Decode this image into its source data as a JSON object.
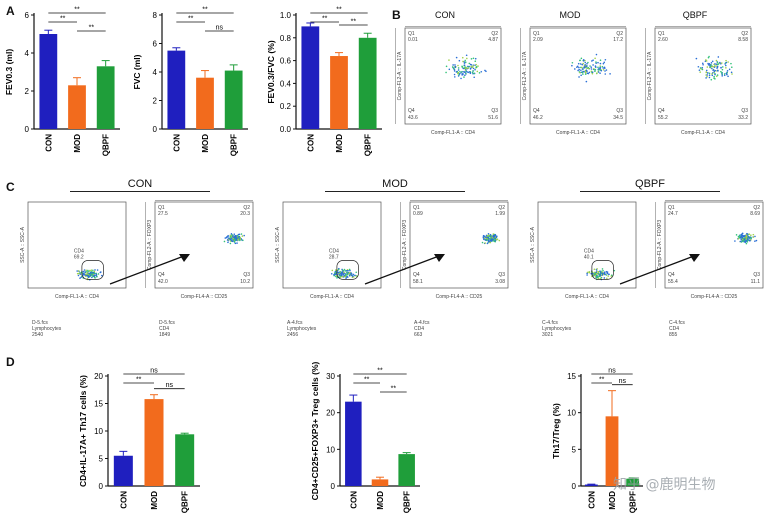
{
  "panel_labels": {
    "a": "A",
    "b": "B",
    "c": "C",
    "d": "D"
  },
  "colors": {
    "CON": "#1f1fbf",
    "MOD": "#f26b1d",
    "QBPF": "#1f9e3a"
  },
  "chart_data": [
    {
      "id": "fev03",
      "type": "bar",
      "categories": [
        "CON",
        "MOD",
        "QBPF"
      ],
      "values": [
        5.0,
        2.3,
        3.3
      ],
      "errors": [
        0.2,
        0.4,
        0.3
      ],
      "ylabel": "FEV0.3 (ml)",
      "ylim": [
        0,
        6
      ],
      "yticks": [
        0,
        2,
        4,
        6
      ],
      "significance": [
        {
          "from": 0,
          "to": 1,
          "label": "**"
        },
        {
          "from": 0,
          "to": 2,
          "label": "**"
        },
        {
          "from": 1,
          "to": 2,
          "label": "**"
        }
      ]
    },
    {
      "id": "fvc",
      "type": "bar",
      "categories": [
        "CON",
        "MOD",
        "QBPF"
      ],
      "values": [
        5.5,
        3.6,
        4.1
      ],
      "errors": [
        0.2,
        0.5,
        0.4
      ],
      "ylabel": "FVC (ml)",
      "ylim": [
        0,
        8
      ],
      "yticks": [
        0,
        2,
        4,
        6,
        8
      ],
      "significance": [
        {
          "from": 0,
          "to": 1,
          "label": "**"
        },
        {
          "from": 0,
          "to": 2,
          "label": "**"
        },
        {
          "from": 1,
          "to": 2,
          "label": "ns"
        }
      ]
    },
    {
      "id": "fevfvc",
      "type": "bar",
      "categories": [
        "CON",
        "MOD",
        "QBPF"
      ],
      "values": [
        0.9,
        0.64,
        0.8
      ],
      "errors": [
        0.03,
        0.03,
        0.04
      ],
      "ylabel": "FEV0.3/FVC (%)",
      "ylim": [
        0,
        1.0
      ],
      "yticks": [
        0.0,
        0.2,
        0.4,
        0.6,
        0.8,
        1.0
      ],
      "significance": [
        {
          "from": 0,
          "to": 1,
          "label": "**"
        },
        {
          "from": 0,
          "to": 2,
          "label": "**"
        },
        {
          "from": 1,
          "to": 2,
          "label": "**"
        }
      ]
    },
    {
      "id": "th17",
      "type": "bar",
      "categories": [
        "CON",
        "MOD",
        "QBPF"
      ],
      "values": [
        5.5,
        15.8,
        9.4
      ],
      "errors": [
        0.8,
        0.8,
        0.2
      ],
      "ylabel": "CD4+IL-17A+ Th17 cells (%)",
      "ylim": [
        0,
        20
      ],
      "yticks": [
        0,
        5,
        10,
        15,
        20
      ],
      "significance": [
        {
          "from": 0,
          "to": 1,
          "label": "**"
        },
        {
          "from": 0,
          "to": 2,
          "label": "ns"
        },
        {
          "from": 1,
          "to": 2,
          "label": "ns"
        }
      ]
    },
    {
      "id": "treg",
      "type": "bar",
      "categories": [
        "CON",
        "MOD",
        "QBPF"
      ],
      "values": [
        23.0,
        1.8,
        8.7
      ],
      "errors": [
        1.8,
        0.6,
        0.4
      ],
      "ylabel": "CD4+CD25+FOXP3+ Treg cells (%)",
      "ylim": [
        0,
        30
      ],
      "yticks": [
        0,
        10,
        20,
        30
      ],
      "significance": [
        {
          "from": 0,
          "to": 1,
          "label": "**"
        },
        {
          "from": 0,
          "to": 2,
          "label": "**"
        },
        {
          "from": 1,
          "to": 2,
          "label": "**"
        }
      ]
    },
    {
      "id": "ratio",
      "type": "bar",
      "categories": [
        "CON",
        "MOD",
        "QBPF"
      ],
      "values": [
        0.2,
        9.5,
        1.0
      ],
      "errors": [
        0.05,
        3.5,
        0.1
      ],
      "ylabel": "Th17/Treg (%)",
      "ylim": [
        0,
        15
      ],
      "yticks": [
        0,
        5,
        10,
        15
      ],
      "significance": [
        {
          "from": 0,
          "to": 1,
          "label": "**"
        },
        {
          "from": 0,
          "to": 2,
          "label": "ns"
        },
        {
          "from": 1,
          "to": 2,
          "label": "ns"
        }
      ]
    }
  ],
  "flow_b": {
    "plots": [
      {
        "title": "CON",
        "q1": "0.01",
        "q2": "4.87",
        "q3": "51.6",
        "q4": "43.6"
      },
      {
        "title": "MOD",
        "q1": "2.09",
        "q2": "17.2",
        "q3": "34.5",
        "q4": "46.2"
      },
      {
        "title": "QBPF",
        "q1": "2.60",
        "q2": "8.58",
        "q3": "33.2",
        "q4": "55.2"
      }
    ],
    "q_names": [
      "Q1",
      "Q2",
      "Q3",
      "Q4"
    ],
    "x_axis": "Comp-FL1-A :: CD4",
    "y_axis": "Comp-FL2-A :: IL-17A"
  },
  "flow_c": {
    "groups": [
      {
        "title": "CON",
        "gate_value": "69.2",
        "q1": "27.5",
        "q2": "20.3",
        "q3": "10.2",
        "q4": "42.0",
        "left_caption": "D-5.fcs\nLymphocytes\n2540",
        "right_caption": "D-5.fcs\nCD4\n1849"
      },
      {
        "title": "MOD",
        "gate_value": "28.7",
        "q1": "0.89",
        "q2": "1.99",
        "q3": "3.08",
        "q4": "58.1",
        "left_caption": "A-4.fcs\nLymphocytes\n2456",
        "right_caption": "A-4.fcs\nCD4\n663"
      },
      {
        "title": "QBPF",
        "gate_value": "40.1",
        "q1": "24.7",
        "q2": "8.69",
        "q3": "11.1",
        "q4": "55.4",
        "left_caption": "C-4.fcs\nLymphocytes\n3021",
        "right_caption": "C-4.fcs\nCD4\n855"
      }
    ],
    "gate_name": "CD4",
    "left_x_axis": "Comp-FL1-A :: CD4",
    "left_y_axis": "SSC-A :: SSC-A",
    "right_x_axis": "Comp-FL4-A :: CD25",
    "right_y_axis": "Comp-FL2-A :: FOXP3"
  },
  "watermark": "知乎 @鹿明生物"
}
